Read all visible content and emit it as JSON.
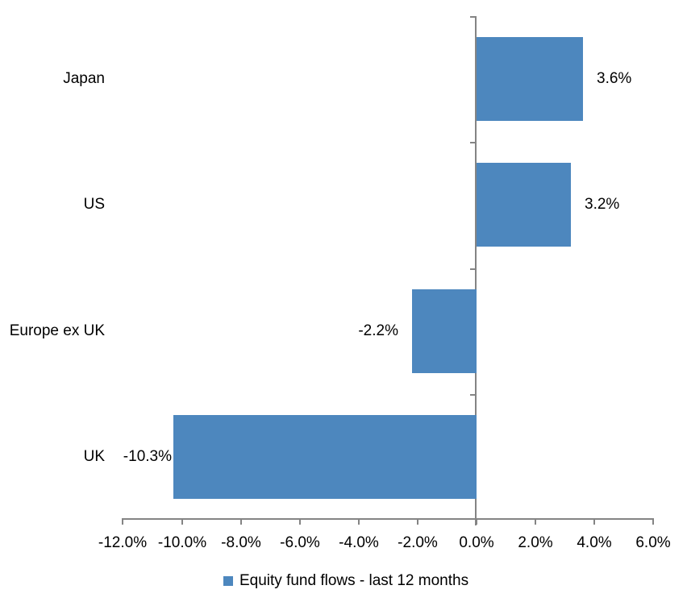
{
  "chart_data": {
    "type": "bar",
    "orientation": "horizontal",
    "title": "",
    "categories": [
      "Japan",
      "US",
      "Europe ex UK",
      "UK"
    ],
    "values": [
      3.6,
      3.2,
      -2.2,
      -10.3
    ],
    "data_labels": [
      "3.6%",
      "3.2%",
      "-2.2%",
      "-10.3%"
    ],
    "series_name": "Equity fund flows - last 12 months",
    "xlim": [
      -12,
      6
    ],
    "x_ticks": [
      -12,
      -10,
      -8,
      -6,
      -4,
      -2,
      0,
      2,
      4,
      6
    ],
    "x_tick_labels": [
      "-12.0%",
      "-10.0%",
      "-8.0%",
      "-6.0%",
      "-4.0%",
      "-2.0%",
      "0.0%",
      "2.0%",
      "4.0%",
      "6.0%"
    ],
    "grid": false,
    "legend_position": "bottom",
    "bar_color": "#4D87BE",
    "axis_color": "#848484",
    "text_color": "#000000"
  },
  "legend": {
    "label": "Equity fund flows - last 12 months"
  }
}
